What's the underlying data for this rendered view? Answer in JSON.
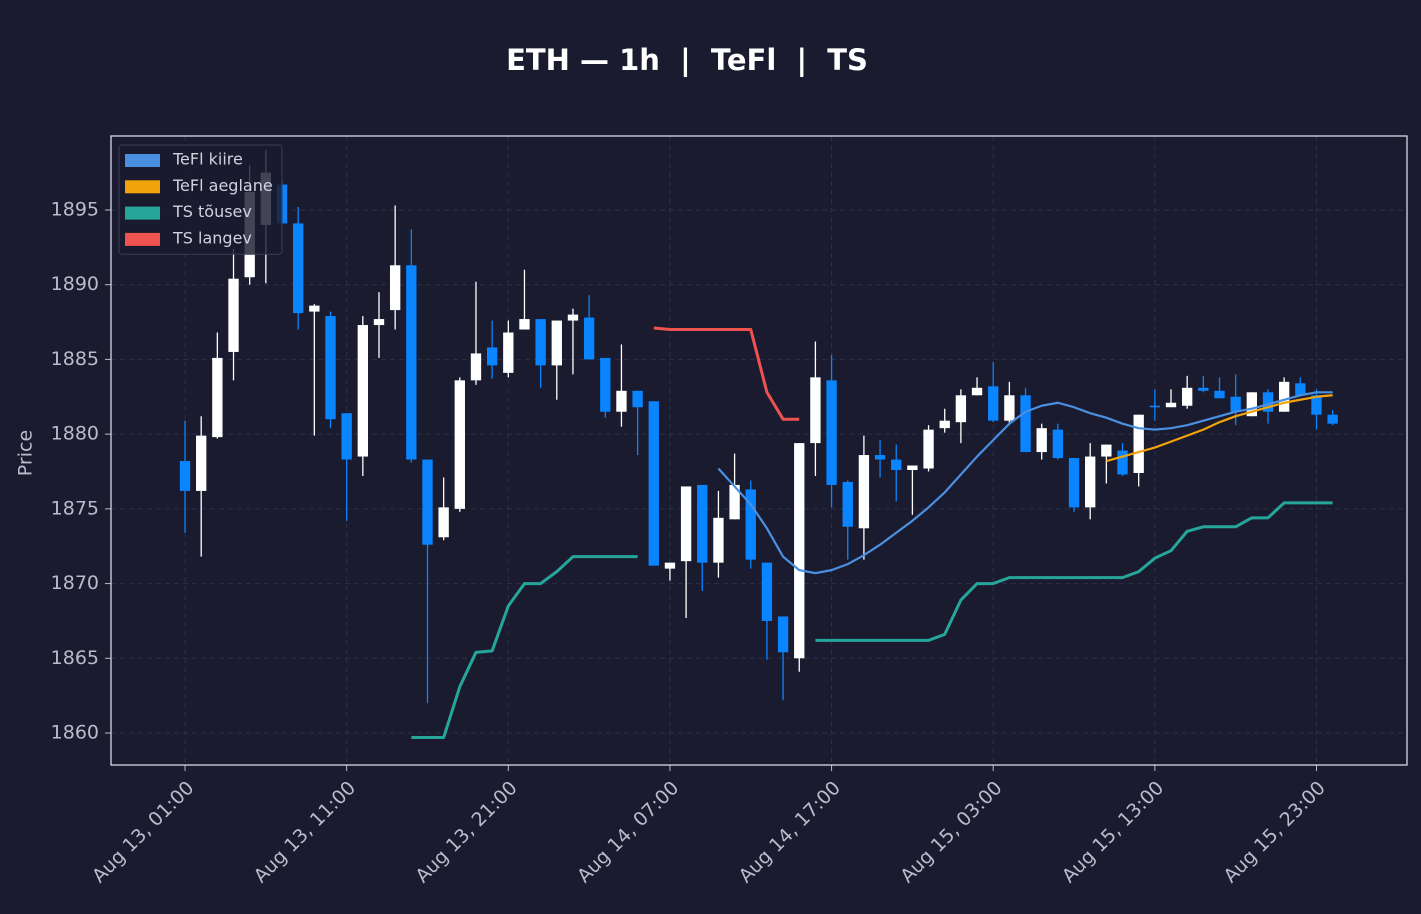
{
  "chart_data": {
    "type": "candlestick",
    "title": "ETH — 1h  |  TeFl  |  TS",
    "y_label": "Price",
    "categories": [
      "Aug 13, 01:00",
      null,
      null,
      null,
      null,
      null,
      null,
      null,
      null,
      null,
      "Aug 13, 11:00",
      null,
      null,
      null,
      null,
      null,
      null,
      null,
      null,
      null,
      "Aug 13, 21:00",
      null,
      null,
      null,
      null,
      null,
      null,
      null,
      null,
      null,
      "Aug 14, 07:00",
      null,
      null,
      null,
      null,
      null,
      null,
      null,
      null,
      null,
      "Aug 14, 17:00",
      null,
      null,
      null,
      null,
      null,
      null,
      null,
      null,
      null,
      "Aug 15, 03:00",
      null,
      null,
      null,
      null,
      null,
      null,
      null,
      null,
      null,
      "Aug 15, 13:00",
      null,
      null,
      null,
      null,
      null,
      null,
      null,
      null,
      null,
      "Aug 15, 23:00",
      null
    ],
    "open": [
      1878.2,
      1876.2,
      1879.8,
      1885.5,
      1890.5,
      1894.0,
      1896.7,
      1894.1,
      1888.2,
      1887.9,
      1881.4,
      1878.5,
      1887.3,
      1888.3,
      1891.3,
      1878.3,
      1873.1,
      1875.0,
      1883.6,
      1885.8,
      1884.1,
      1887.0,
      1887.7,
      1884.6,
      1887.6,
      1887.8,
      1885.1,
      1881.5,
      1882.9,
      1882.2,
      1871.0,
      1871.5,
      1876.6,
      1871.4,
      1874.3,
      1876.3,
      1871.4,
      1867.8,
      1865.0,
      1879.4,
      1883.6,
      1876.8,
      1873.7,
      1878.6,
      1878.3,
      1877.6,
      1877.7,
      1880.4,
      1880.8,
      1882.6,
      1883.2,
      1880.9,
      1882.6,
      1878.8,
      1880.3,
      1878.4,
      1875.1,
      1878.5,
      1878.9,
      1877.4,
      1881.9,
      1881.8,
      1881.9,
      1883.1,
      1882.9,
      1882.5,
      1881.2,
      1882.8,
      1881.5,
      1883.4,
      1882.6,
      1881.3
    ],
    "high": [
      1880.9,
      1881.2,
      1886.8,
      1892.4,
      1898.0,
      1899.0,
      1897.0,
      1895.2,
      1888.7,
      1888.2,
      1881.4,
      1887.9,
      1889.5,
      1895.3,
      1893.7,
      1878.3,
      1877.1,
      1883.8,
      1890.2,
      1887.6,
      1887.6,
      1891.0,
      1887.7,
      1887.6,
      1888.4,
      1889.3,
      1885.1,
      1886.0,
      1882.9,
      1882.2,
      1871.4,
      1876.5,
      1876.6,
      1876.2,
      1878.7,
      1876.9,
      1871.4,
      1867.8,
      1879.4,
      1886.2,
      1885.3,
      1876.9,
      1879.9,
      1879.6,
      1879.3,
      1877.9,
      1880.6,
      1881.7,
      1883.0,
      1883.8,
      1884.8,
      1883.5,
      1883.1,
      1880.7,
      1880.7,
      1878.4,
      1879.4,
      1879.3,
      1879.4,
      1881.3,
      1883.0,
      1883.0,
      1883.9,
      1883.9,
      1883.8,
      1884.0,
      1882.8,
      1883.0,
      1883.8,
      1883.8,
      1883.0,
      1881.6
    ],
    "low": [
      1873.4,
      1871.8,
      1879.7,
      1883.6,
      1890.0,
      1890.1,
      1894.0,
      1887.0,
      1879.9,
      1880.4,
      1874.2,
      1877.2,
      1885.1,
      1887.0,
      1878.1,
      1862.0,
      1872.9,
      1874.8,
      1883.3,
      1883.7,
      1883.8,
      1887.0,
      1883.1,
      1882.3,
      1884.0,
      1885.0,
      1881.1,
      1880.5,
      1878.6,
      1871.2,
      1870.2,
      1867.7,
      1869.5,
      1870.4,
      1874.3,
      1871.0,
      1864.9,
      1862.2,
      1864.1,
      1877.2,
      1875.1,
      1871.6,
      1871.6,
      1877.1,
      1875.5,
      1874.6,
      1877.5,
      1880.1,
      1879.4,
      1882.6,
      1880.8,
      1880.6,
      1878.8,
      1878.3,
      1878.3,
      1874.8,
      1874.3,
      1876.7,
      1877.2,
      1876.5,
      1880.9,
      1881.8,
      1881.7,
      1882.8,
      1882.4,
      1880.6,
      1881.2,
      1880.7,
      1881.5,
      1882.6,
      1880.3,
      1880.6
    ],
    "close": [
      1876.2,
      1879.9,
      1885.1,
      1890.4,
      1896.2,
      1897.5,
      1894.1,
      1888.1,
      1888.6,
      1881.0,
      1878.3,
      1887.3,
      1887.7,
      1891.3,
      1878.3,
      1872.6,
      1875.1,
      1883.6,
      1885.4,
      1884.6,
      1886.8,
      1887.7,
      1884.6,
      1887.6,
      1888.0,
      1885.0,
      1881.5,
      1882.9,
      1881.8,
      1871.2,
      1871.4,
      1876.5,
      1871.4,
      1874.4,
      1876.6,
      1871.6,
      1867.5,
      1865.4,
      1879.4,
      1883.8,
      1876.6,
      1873.8,
      1878.6,
      1878.3,
      1877.6,
      1877.9,
      1880.3,
      1880.9,
      1882.6,
      1883.1,
      1880.9,
      1882.6,
      1878.8,
      1880.4,
      1878.4,
      1875.1,
      1878.5,
      1879.3,
      1877.3,
      1881.3,
      1881.8,
      1882.1,
      1883.1,
      1882.9,
      1882.4,
      1881.5,
      1882.8,
      1881.5,
      1883.5,
      1882.6,
      1881.3,
      1880.7
    ],
    "up_color": "#ffffff",
    "down_color": "#0a84ff",
    "series": [
      {
        "name": "TeFl kiire",
        "color": "#4a90e2",
        "values": [
          null,
          null,
          null,
          null,
          null,
          null,
          null,
          null,
          null,
          null,
          null,
          null,
          null,
          null,
          null,
          null,
          null,
          null,
          null,
          null,
          null,
          null,
          null,
          null,
          null,
          null,
          null,
          null,
          null,
          null,
          null,
          null,
          null,
          1877.7,
          1876.5,
          1875.3,
          1873.7,
          1871.8,
          1870.9,
          1870.7,
          1870.9,
          1871.3,
          1871.9,
          1872.6,
          1873.4,
          1874.2,
          1875.1,
          1876.1,
          1877.3,
          1878.5,
          1879.6,
          1880.7,
          1881.5,
          1881.9,
          1882.1,
          1881.8,
          1881.4,
          1881.1,
          1880.7,
          1880.4,
          1880.3,
          1880.4,
          1880.6,
          1880.9,
          1881.2,
          1881.5,
          1881.7,
          1882.0,
          1882.3,
          1882.6,
          1882.8,
          1882.8
        ]
      },
      {
        "name": "TeFl aeglane",
        "color": "#f0a30a",
        "values": [
          null,
          null,
          null,
          null,
          null,
          null,
          null,
          null,
          null,
          null,
          null,
          null,
          null,
          null,
          null,
          null,
          null,
          null,
          null,
          null,
          null,
          null,
          null,
          null,
          null,
          null,
          null,
          null,
          null,
          null,
          null,
          null,
          null,
          null,
          null,
          null,
          null,
          null,
          null,
          null,
          null,
          null,
          null,
          null,
          null,
          null,
          null,
          null,
          null,
          null,
          null,
          null,
          null,
          null,
          null,
          null,
          null,
          1878.2,
          1878.5,
          1878.8,
          1879.1,
          1879.5,
          1879.9,
          1880.3,
          1880.8,
          1881.2,
          1881.5,
          1881.8,
          1882.1,
          1882.3,
          1882.5,
          1882.6
        ]
      },
      {
        "name": "TS tõusev",
        "color": "#26a69a",
        "values": [
          null,
          null,
          null,
          null,
          null,
          null,
          null,
          null,
          null,
          null,
          null,
          null,
          null,
          null,
          1859.7,
          1859.7,
          1859.7,
          1863.1,
          1865.4,
          1865.5,
          1868.5,
          1870.0,
          1870.0,
          1870.8,
          1871.8,
          1871.8,
          1871.8,
          1871.8,
          1871.8,
          null,
          null,
          null,
          null,
          null,
          null,
          null,
          null,
          null,
          null,
          1866.2,
          1866.2,
          1866.2,
          1866.2,
          1866.2,
          1866.2,
          1866.2,
          1866.2,
          1866.6,
          1868.9,
          1870.0,
          1870.0,
          1870.4,
          1870.4,
          1870.4,
          1870.4,
          1870.4,
          1870.4,
          1870.4,
          1870.4,
          1870.8,
          1871.7,
          1872.2,
          1873.5,
          1873.8,
          1873.8,
          1873.8,
          1874.4,
          1874.4,
          1875.4,
          1875.4,
          1875.4,
          1875.4
        ]
      },
      {
        "name": "TS langev",
        "color": "#ef5350",
        "values": [
          null,
          null,
          null,
          null,
          null,
          null,
          null,
          null,
          null,
          null,
          null,
          null,
          null,
          null,
          null,
          null,
          null,
          null,
          null,
          null,
          null,
          null,
          null,
          null,
          null,
          null,
          null,
          null,
          null,
          1887.1,
          1887.0,
          1887.0,
          1887.0,
          1887.0,
          1887.0,
          1887.0,
          1882.8,
          1881.0,
          1881.0,
          null,
          null,
          null,
          null,
          null,
          null,
          null,
          null,
          null,
          null,
          null,
          null,
          null,
          null,
          null,
          null,
          null,
          null,
          null,
          null,
          null,
          null,
          null,
          null,
          null,
          null,
          null,
          null,
          null,
          null,
          null,
          null,
          null
        ]
      }
    ],
    "ylim": [
      1857.86,
      1899.95
    ],
    "yticks": [
      1860,
      1865,
      1870,
      1875,
      1880,
      1885,
      1890,
      1895
    ],
    "grid": true,
    "legend": "upper left"
  }
}
